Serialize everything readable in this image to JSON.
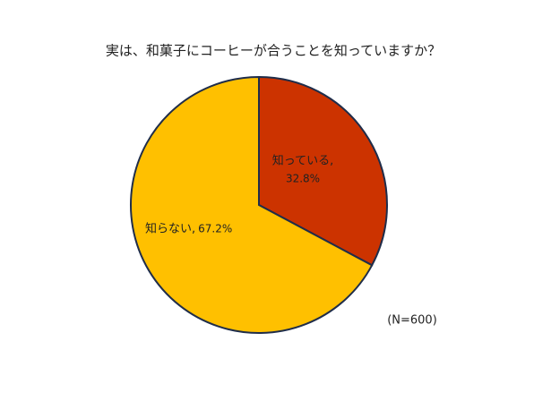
{
  "chart_data": {
    "type": "pie",
    "title": "実は、和菓子にコーヒーが合うことを知っていますか？",
    "categories": [
      "知っている,",
      "知らない,"
    ],
    "values": [
      32.8,
      67.2
    ],
    "value_labels": [
      "32.8%",
      "67.2%"
    ],
    "colors": [
      "#cc3300",
      "#ffc000"
    ],
    "note": "(N=600)"
  }
}
